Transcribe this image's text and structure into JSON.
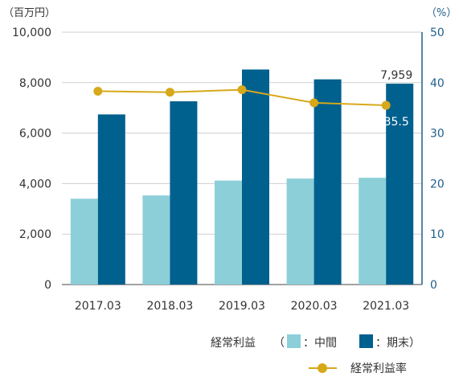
{
  "chart_data": {
    "type": "bar",
    "categories": [
      "2017.03",
      "2018.03",
      "2019.03",
      "2020.03",
      "2021.03"
    ],
    "series": [
      {
        "name": "中間",
        "kind": "bar",
        "axis": "left",
        "color": "#8ccfd9",
        "values": [
          3400,
          3530,
          4120,
          4200,
          4230
        ]
      },
      {
        "name": "期末",
        "kind": "bar",
        "axis": "left",
        "color": "#00608e",
        "values": [
          6740,
          7260,
          8520,
          8130,
          7959
        ]
      },
      {
        "name": "経常利益率",
        "kind": "line",
        "axis": "right",
        "color": "#d7a81a",
        "values": [
          38.3,
          38.1,
          38.6,
          36.0,
          35.5
        ]
      }
    ],
    "left_axis": {
      "unit": "（百万円）",
      "ylim": [
        0,
        10000
      ],
      "ticks": [
        "0",
        "2,000",
        "4,000",
        "6,000",
        "8,000",
        "10,000"
      ]
    },
    "right_axis": {
      "unit": "（%）",
      "ylim": [
        0,
        50
      ],
      "ticks": [
        "0",
        "10",
        "20",
        "30",
        "40",
        "50"
      ]
    },
    "data_labels": {
      "last_bar": "7,959",
      "last_point": "35.5"
    },
    "legend": {
      "bar_group_label": "経常利益",
      "open_paren": "（",
      "interim_label": "：中間",
      "final_label": "：期末）",
      "line_label": "経常利益率"
    },
    "grid": true,
    "colors": {
      "axis_right": "#1f5f8b",
      "grid": "#cfcfcf",
      "axis_line": "#444444"
    }
  }
}
